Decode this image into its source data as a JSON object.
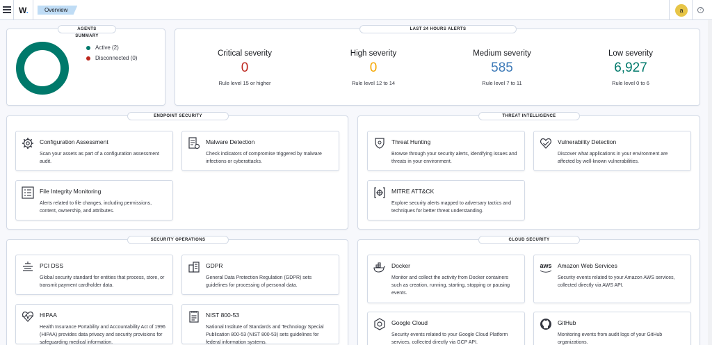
{
  "header": {
    "logo_text": "W",
    "logo_dot": ".",
    "breadcrumb": "Overview",
    "avatar": "a",
    "help_icon": "?"
  },
  "agents": {
    "title": "AGENTS SUMMARY",
    "active_label": "Active (2)",
    "disconnected_label": "Disconnected (0)",
    "active_count": 2,
    "disconnected_count": 0,
    "active_color": "#00796b",
    "disconnected_color": "#bd271e"
  },
  "alerts": {
    "title": "LAST 24 HOURS ALERTS",
    "items": [
      {
        "title": "Critical severity",
        "value": "0",
        "subtitle": "Rule level 15 or higher",
        "color": "#bd271e"
      },
      {
        "title": "High severity",
        "value": "0",
        "subtitle": "Rule level 12 to 14",
        "color": "#f5a700"
      },
      {
        "title": "Medium severity",
        "value": "585",
        "subtitle": "Rule level 7 to 11",
        "color": "#3f7bb8"
      },
      {
        "title": "Low severity",
        "value": "6,927",
        "subtitle": "Rule level 0 to 6",
        "color": "#00796b"
      }
    ]
  },
  "endpoint": {
    "title": "ENDPOINT SECURITY",
    "cards": [
      {
        "title": "Configuration Assessment",
        "desc": "Scan your assets as part of a configuration assessment audit.",
        "icon": "gear-icon"
      },
      {
        "title": "Malware Detection",
        "desc": "Check indicators of compromise triggered by malware infections or cyberattacks.",
        "icon": "document-gear-icon"
      },
      {
        "title": "File Integrity Monitoring",
        "desc": "Alerts related to file changes, including permissions, content, ownership, and attributes.",
        "icon": "list-icon"
      }
    ]
  },
  "threat": {
    "title": "THREAT INTELLIGENCE",
    "cards": [
      {
        "title": "Threat Hunting",
        "desc": "Browse through your security alerts, identifying issues and threats in your environment.",
        "icon": "shield-icon"
      },
      {
        "title": "Vulnerability Detection",
        "desc": "Discover what applications in your environment are affected by well-known vulnerabilities.",
        "icon": "heart-check-icon"
      },
      {
        "title": "MITRE ATT&CK",
        "desc": "Explore security alerts mapped to adversary tactics and techniques for better threat understanding.",
        "icon": "crosshair-icon"
      }
    ]
  },
  "secops": {
    "title": "SECURITY OPERATIONS",
    "cards": [
      {
        "title": "PCI DSS",
        "desc": "Global security standard for entities that process, store, or transmit payment cardholder data.",
        "icon": "layers-icon"
      },
      {
        "title": "GDPR",
        "desc": "General Data Protection Regulation (GDPR) sets guidelines for processing of personal data.",
        "icon": "building-icon"
      },
      {
        "title": "HIPAA",
        "desc": "Health Insurance Portability and Accountability Act of 1996 (HIPAA) provides data privacy and security provisions for safeguarding medical information.",
        "icon": "heart-pulse-icon"
      },
      {
        "title": "NIST 800-53",
        "desc": "National Institute of Standards and Technology Special Publication 800-53 (NIST 800-53) sets guidelines for federal information systems.",
        "icon": "notebook-icon"
      }
    ]
  },
  "cloud": {
    "title": "CLOUD SECURITY",
    "cards": [
      {
        "title": "Docker",
        "desc": "Monitor and collect the activity from Docker containers such as creation, running, starting, stopping or pausing events.",
        "icon": "docker-icon"
      },
      {
        "title": "Amazon Web Services",
        "desc": "Security events related to your Amazon AWS services, collected directly via AWS API.",
        "icon": "aws-icon",
        "icon_text": "aws"
      },
      {
        "title": "Google Cloud",
        "desc": "Security events related to your Google Cloud Platform services, collected directly via GCP API.",
        "icon": "google-cloud-icon"
      },
      {
        "title": "GitHub",
        "desc": "Monitoring events from audit logs of your GitHub organizations.",
        "icon": "github-icon"
      }
    ]
  }
}
